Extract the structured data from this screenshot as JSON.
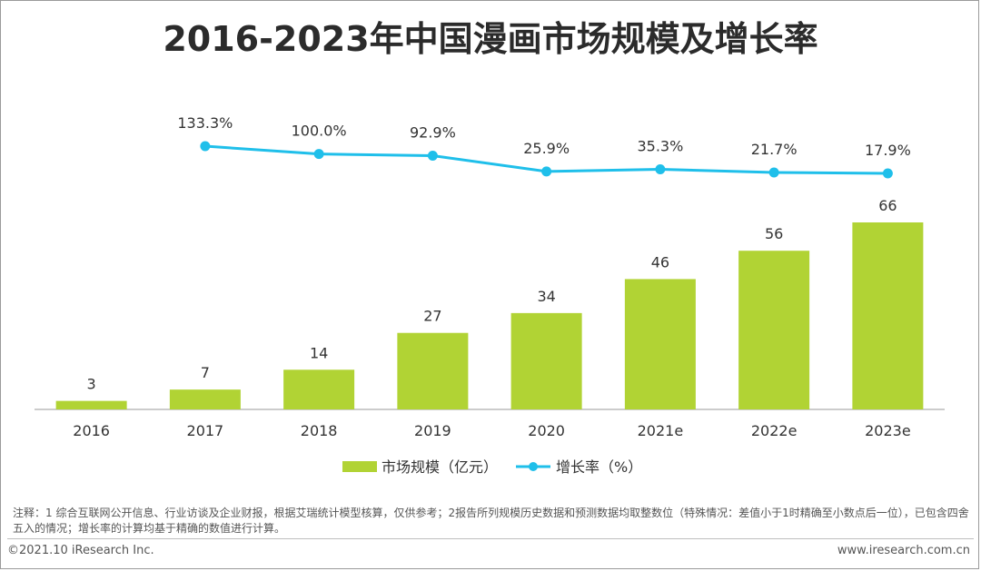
{
  "title": "2016-2023年中国漫画市场规模及增长率",
  "chart_data": {
    "type": "bar",
    "title": "2016-2023年中国漫画市场规模及增长率",
    "categories": [
      "2016",
      "2017",
      "2018",
      "2019",
      "2020",
      "2021e",
      "2022e",
      "2023e"
    ],
    "series": [
      {
        "name": "市场规模（亿元）",
        "type": "bar",
        "values": [
          3,
          7,
          14,
          27,
          34,
          46,
          56,
          66
        ],
        "labels": [
          "3",
          "7",
          "14",
          "27",
          "34",
          "46",
          "56",
          "66"
        ],
        "color": "#b1d334"
      },
      {
        "name": "增长率（%）",
        "type": "line",
        "values": [
          null,
          133.3,
          100.0,
          92.9,
          25.9,
          35.3,
          21.7,
          17.9
        ],
        "labels": [
          "",
          "133.3%",
          "100.0%",
          "92.9%",
          "25.9%",
          "35.3%",
          "21.7%",
          "17.9%"
        ],
        "color": "#1fbfea"
      }
    ],
    "xlabel": "",
    "ylabel": "",
    "bar_ylim": [
      0,
      70
    ],
    "line_ylim": [
      0,
      140
    ],
    "legend": "bottom-center",
    "grid": false
  },
  "note": "注释：1 综合互联网公开信息、行业访谈及企业财报，根据艾瑞统计模型核算，仅供参考；2报告所列规模历史数据和预测数据均取整数位（特殊情况：差值小于1时精确至小数点后一位），已包含四舍五入的情况；增长率的计算均基于精确的数值进行计算。",
  "footer": {
    "copyright": "©2021.10 iResearch Inc.",
    "website": "www.iresearch.com.cn"
  }
}
